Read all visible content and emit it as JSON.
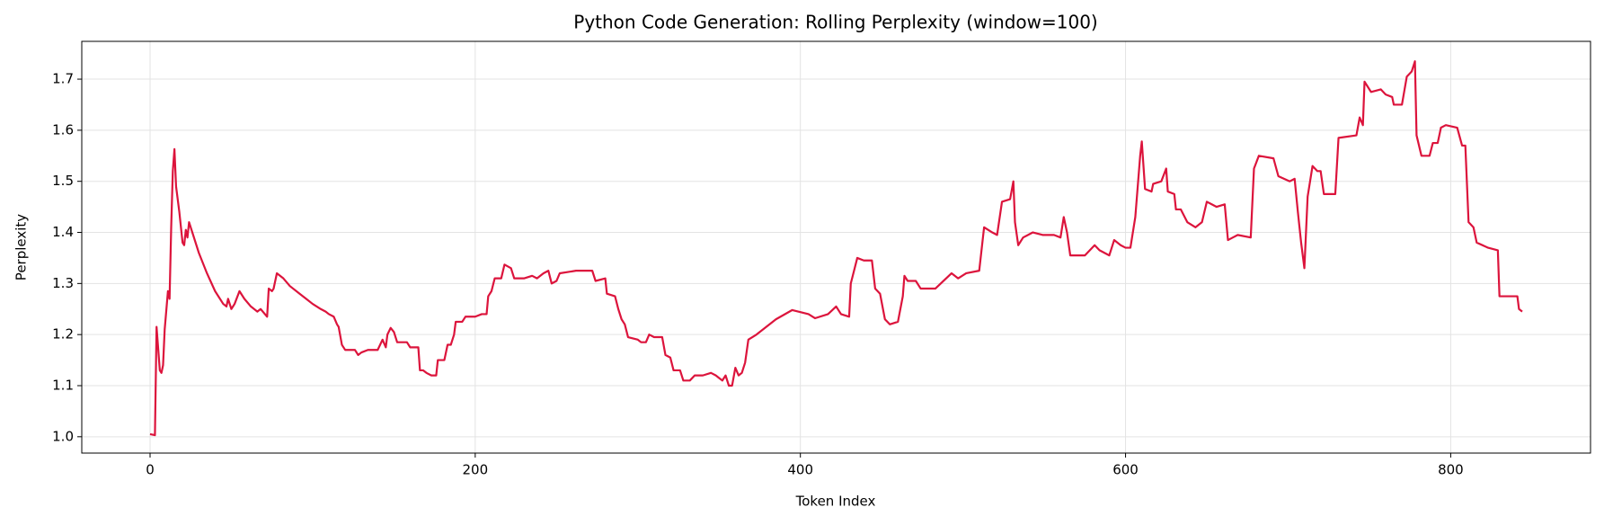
{
  "chart_data": {
    "type": "line",
    "title": "Python Code Generation: Rolling Perplexity (window=100)",
    "x_label": "Token Index",
    "y_label": "Perplexity",
    "color": "#dc143c",
    "grid": true,
    "xlim": [
      -42,
      886
    ],
    "ylim": [
      0.968,
      1.774
    ],
    "xticks": [
      0,
      200,
      400,
      600,
      800
    ],
    "yticks": [
      {
        "value": 1,
        "label": "1.0"
      },
      1.1,
      1.2,
      1.3,
      1.4,
      1.5,
      1.6,
      1.7
    ],
    "x": [
      0,
      3,
      4,
      6,
      7,
      8,
      9,
      11,
      12,
      13,
      14,
      15,
      16,
      18,
      20,
      21,
      22,
      23,
      24,
      26,
      30,
      35,
      40,
      45,
      47,
      48,
      50,
      52,
      55,
      58,
      62,
      66,
      68,
      72,
      73,
      75,
      76,
      78,
      82,
      86,
      92,
      96,
      100,
      105,
      108,
      110,
      113,
      115,
      116,
      118,
      120,
      126,
      128,
      130,
      134,
      140,
      143,
      145,
      146,
      148,
      150,
      152,
      158,
      160,
      165,
      166,
      168,
      170,
      173,
      176,
      177,
      181,
      183,
      185,
      187,
      188,
      192,
      194,
      200,
      204,
      207,
      208,
      210,
      212,
      216,
      218,
      222,
      224,
      230,
      235,
      238,
      242,
      245,
      247,
      250,
      252,
      262,
      272,
      274,
      280,
      281,
      286,
      288,
      290,
      292,
      294,
      300,
      302,
      305,
      307,
      310,
      315,
      317,
      320,
      322,
      326,
      328,
      332,
      335,
      340,
      345,
      348,
      350,
      352,
      354,
      356,
      358,
      360,
      362,
      364,
      366,
      368,
      373,
      385,
      395,
      405,
      409,
      417,
      422,
      425,
      430,
      431,
      435,
      439,
      444,
      446,
      449,
      452,
      455,
      460,
      463,
      464,
      466,
      471,
      474,
      483,
      493,
      497,
      502,
      510,
      513,
      518,
      521,
      524,
      529,
      531,
      532,
      534,
      537,
      543,
      549,
      556,
      560,
      562,
      564,
      566,
      575,
      581,
      584,
      590,
      593,
      597,
      600,
      603,
      606,
      609,
      610,
      612,
      616,
      617,
      622,
      625,
      626,
      630,
      631,
      634,
      638,
      643,
      647,
      650,
      653,
      656,
      661,
      663,
      666,
      669,
      677,
      679,
      682,
      691,
      694,
      701,
      704,
      706,
      708,
      710,
      712,
      715,
      718,
      720,
      722,
      729,
      731,
      742,
      744,
      746,
      747,
      751,
      757,
      760,
      764,
      765,
      770,
      773,
      776,
      778,
      779,
      782,
      787,
      789,
      792,
      794,
      797,
      804,
      807,
      809,
      811,
      814,
      816,
      823,
      829,
      830,
      841,
      842,
      844
    ],
    "values": [
      1.005,
      1.003,
      1.215,
      1.13,
      1.125,
      1.14,
      1.21,
      1.285,
      1.27,
      1.41,
      1.52,
      1.563,
      1.49,
      1.44,
      1.38,
      1.375,
      1.405,
      1.39,
      1.42,
      1.4,
      1.36,
      1.32,
      1.285,
      1.26,
      1.255,
      1.27,
      1.25,
      1.26,
      1.285,
      1.27,
      1.255,
      1.245,
      1.25,
      1.235,
      1.29,
      1.285,
      1.29,
      1.32,
      1.31,
      1.295,
      1.28,
      1.27,
      1.26,
      1.25,
      1.245,
      1.24,
      1.235,
      1.22,
      1.215,
      1.18,
      1.17,
      1.17,
      1.16,
      1.165,
      1.17,
      1.17,
      1.19,
      1.175,
      1.2,
      1.213,
      1.205,
      1.185,
      1.185,
      1.175,
      1.175,
      1.13,
      1.13,
      1.125,
      1.12,
      1.12,
      1.15,
      1.15,
      1.18,
      1.18,
      1.2,
      1.225,
      1.225,
      1.235,
      1.235,
      1.24,
      1.24,
      1.275,
      1.285,
      1.31,
      1.31,
      1.337,
      1.33,
      1.31,
      1.31,
      1.315,
      1.31,
      1.32,
      1.325,
      1.3,
      1.305,
      1.32,
      1.325,
      1.325,
      1.305,
      1.31,
      1.28,
      1.275,
      1.25,
      1.23,
      1.22,
      1.195,
      1.19,
      1.185,
      1.185,
      1.2,
      1.195,
      1.195,
      1.16,
      1.155,
      1.13,
      1.13,
      1.11,
      1.11,
      1.12,
      1.12,
      1.125,
      1.12,
      1.115,
      1.11,
      1.12,
      1.1,
      1.1,
      1.135,
      1.12,
      1.125,
      1.145,
      1.19,
      1.2,
      1.23,
      1.248,
      1.24,
      1.232,
      1.24,
      1.255,
      1.24,
      1.235,
      1.3,
      1.35,
      1.345,
      1.345,
      1.29,
      1.28,
      1.23,
      1.22,
      1.225,
      1.275,
      1.315,
      1.305,
      1.305,
      1.29,
      1.29,
      1.32,
      1.31,
      1.32,
      1.325,
      1.41,
      1.4,
      1.395,
      1.46,
      1.465,
      1.5,
      1.42,
      1.375,
      1.39,
      1.4,
      1.395,
      1.395,
      1.39,
      1.43,
      1.4,
      1.355,
      1.355,
      1.375,
      1.365,
      1.355,
      1.385,
      1.375,
      1.37,
      1.37,
      1.43,
      1.55,
      1.578,
      1.485,
      1.48,
      1.495,
      1.5,
      1.525,
      1.48,
      1.475,
      1.445,
      1.445,
      1.42,
      1.41,
      1.42,
      1.46,
      1.455,
      1.45,
      1.455,
      1.385,
      1.39,
      1.395,
      1.39,
      1.525,
      1.55,
      1.545,
      1.51,
      1.5,
      1.505,
      1.44,
      1.38,
      1.33,
      1.47,
      1.53,
      1.52,
      1.52,
      1.475,
      1.475,
      1.585,
      1.59,
      1.625,
      1.61,
      1.695,
      1.675,
      1.68,
      1.67,
      1.665,
      1.65,
      1.65,
      1.705,
      1.715,
      1.735,
      1.59,
      1.55,
      1.55,
      1.575,
      1.575,
      1.605,
      1.61,
      1.605,
      1.57,
      1.57,
      1.42,
      1.41,
      1.38,
      1.37,
      1.365,
      1.275,
      1.275,
      1.25,
      1.245
    ]
  }
}
